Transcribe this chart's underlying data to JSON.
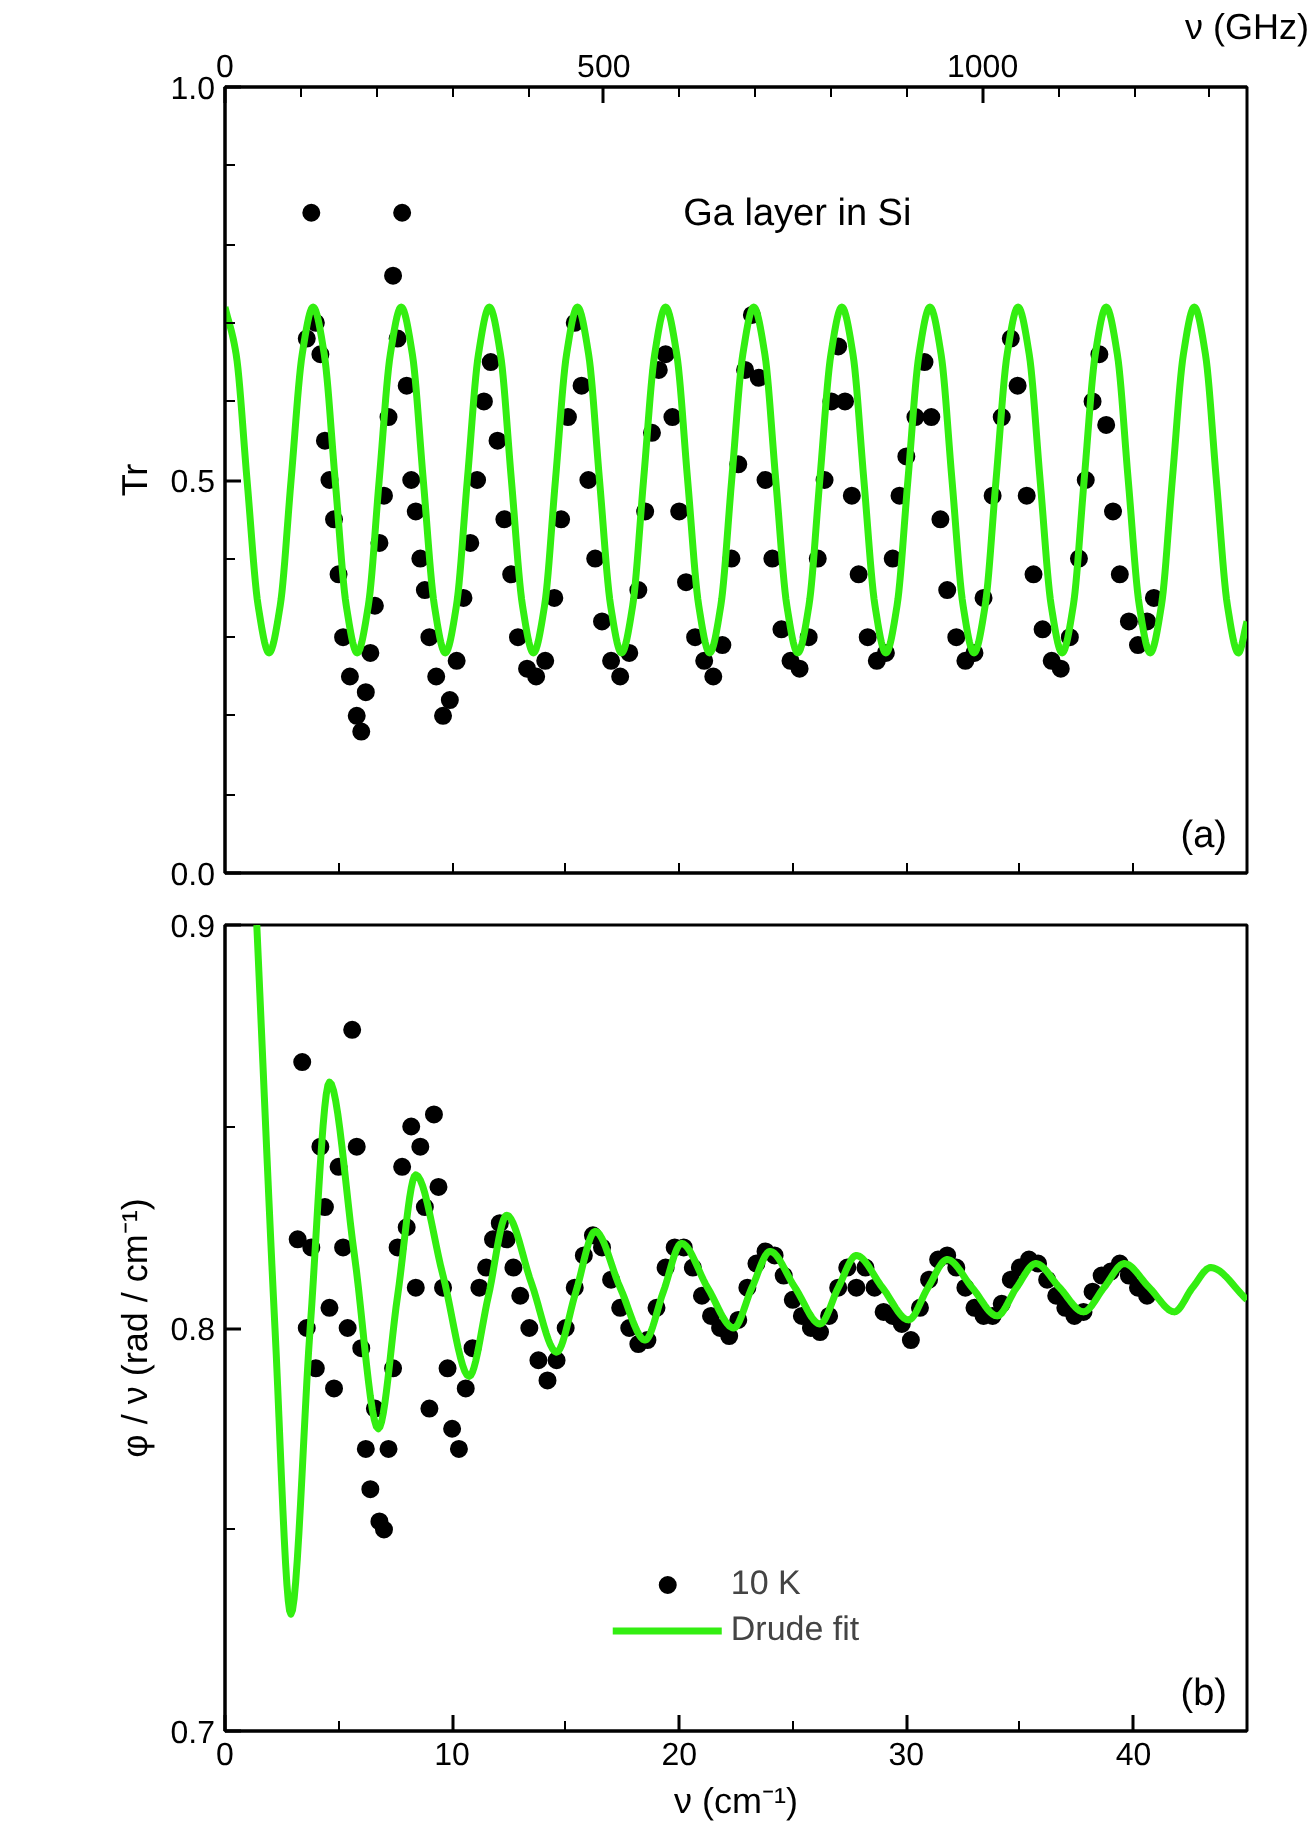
{
  "chart_data": [
    {
      "type": "scatter",
      "ylabel": "Tr",
      "annotations": [
        "Ga layer in Si",
        "(a)"
      ],
      "xlim": [
        0,
        45
      ],
      "ylim": [
        0,
        1
      ],
      "x2label": "ν (GHz)",
      "x2lim": [
        0,
        1349
      ],
      "tick_labels": "y",
      "grid": false,
      "xticks": [
        {
          "value": 0,
          "label": null
        },
        {
          "value": 5,
          "label": null
        },
        {
          "value": 10,
          "label": null
        },
        {
          "value": 15,
          "label": null
        },
        {
          "value": 20,
          "label": null
        },
        {
          "value": 25,
          "label": null
        },
        {
          "value": 30,
          "label": null
        },
        {
          "value": 35,
          "label": null
        },
        {
          "value": 40,
          "label": null
        },
        {
          "value": 45,
          "label": null
        }
      ],
      "x2ticks": [
        0,
        {
          "value": 100,
          "label": null
        },
        {
          "value": 200,
          "label": null
        },
        {
          "value": 300,
          "label": null
        },
        {
          "value": 400,
          "label": null
        },
        500,
        {
          "value": 600,
          "label": null
        },
        {
          "value": 700,
          "label": null
        },
        {
          "value": 800,
          "label": null
        },
        {
          "value": 900,
          "label": null
        },
        1000,
        {
          "value": 1100,
          "label": null
        },
        {
          "value": 1200,
          "label": null
        },
        {
          "value": 1300,
          "label": null
        }
      ],
      "yticks": [
        {
          "value": 0,
          "label": "0.0"
        },
        {
          "value": 0.1,
          "label": null
        },
        {
          "value": 0.2,
          "label": null
        },
        {
          "value": 0.3,
          "label": null
        },
        {
          "value": 0.4,
          "label": null
        },
        0.5,
        {
          "value": 0.6,
          "label": null
        },
        {
          "value": 0.7,
          "label": null
        },
        {
          "value": 0.8,
          "label": null
        },
        {
          "value": 0.9,
          "label": null
        },
        {
          "value": 1,
          "label": "1.0"
        }
      ],
      "series": [
        {
          "marker": "circle",
          "color": "#000000",
          "x": [
            3.6,
            3.8,
            4.0,
            4.2,
            4.4,
            4.6,
            4.8,
            5.0,
            5.2,
            5.5,
            5.8,
            6.0,
            6.2,
            6.4,
            6.6,
            6.8,
            7.0,
            7.2,
            7.4,
            7.6,
            7.8,
            8.0,
            8.2,
            8.4,
            8.6,
            8.8,
            9.0,
            9.3,
            9.6,
            9.9,
            10.2,
            10.5,
            10.8,
            11.1,
            11.4,
            11.7,
            12.0,
            12.3,
            12.6,
            12.9,
            13.3,
            13.7,
            14.1,
            14.5,
            14.8,
            15.1,
            15.4,
            15.7,
            16.0,
            16.3,
            16.6,
            17.0,
            17.4,
            17.8,
            18.2,
            18.5,
            18.8,
            19.1,
            19.4,
            19.7,
            20.0,
            20.3,
            20.7,
            21.1,
            21.5,
            21.9,
            22.3,
            22.6,
            22.9,
            23.2,
            23.5,
            23.8,
            24.1,
            24.5,
            24.9,
            25.3,
            25.7,
            26.1,
            26.4,
            26.7,
            27.0,
            27.3,
            27.6,
            27.9,
            28.3,
            28.7,
            29.1,
            29.4,
            29.7,
            30.0,
            30.4,
            30.8,
            31.1,
            31.5,
            31.8,
            32.2,
            32.6,
            33.0,
            33.4,
            33.8,
            34.2,
            34.6,
            34.9,
            35.3,
            35.6,
            36.0,
            36.4,
            36.8,
            37.2,
            37.6,
            37.9,
            38.2,
            38.5,
            38.8,
            39.1,
            39.4,
            39.8,
            40.2,
            40.6,
            40.9
          ],
          "values": [
            0.68,
            0.84,
            0.7,
            0.66,
            0.55,
            0.5,
            0.45,
            0.38,
            0.3,
            0.25,
            0.2,
            0.18,
            0.23,
            0.28,
            0.34,
            0.42,
            0.48,
            0.58,
            0.76,
            0.68,
            0.84,
            0.62,
            0.5,
            0.46,
            0.4,
            0.36,
            0.3,
            0.25,
            0.2,
            0.22,
            0.27,
            0.35,
            0.42,
            0.5,
            0.6,
            0.65,
            0.55,
            0.45,
            0.38,
            0.3,
            0.26,
            0.25,
            0.27,
            0.35,
            0.45,
            0.58,
            0.7,
            0.62,
            0.5,
            0.4,
            0.32,
            0.27,
            0.25,
            0.28,
            0.36,
            0.46,
            0.56,
            0.64,
            0.66,
            0.58,
            0.46,
            0.37,
            0.3,
            0.27,
            0.25,
            0.29,
            0.4,
            0.52,
            0.64,
            0.71,
            0.63,
            0.5,
            0.4,
            0.31,
            0.27,
            0.26,
            0.3,
            0.4,
            0.5,
            0.6,
            0.67,
            0.6,
            0.48,
            0.38,
            0.3,
            0.27,
            0.28,
            0.4,
            0.48,
            0.53,
            0.58,
            0.65,
            0.58,
            0.45,
            0.36,
            0.3,
            0.27,
            0.28,
            0.35,
            0.48,
            0.58,
            0.68,
            0.62,
            0.48,
            0.38,
            0.31,
            0.27,
            0.26,
            0.3,
            0.4,
            0.5,
            0.6,
            0.66,
            0.57,
            0.46,
            0.38,
            0.32,
            0.29,
            0.32,
            0.35
          ]
        },
        {
          "type": "line",
          "color": "#33ee11",
          "line_style": "solid",
          "x": [
            0,
            0.49,
            0.97,
            1.46,
            1.94,
            2.43,
            2.91,
            3.4,
            3.88,
            4.37,
            4.85,
            5.34,
            5.82,
            6.31,
            6.79,
            7.28,
            7.76,
            8.25,
            8.73,
            9.22,
            9.7,
            10.19,
            10.67,
            11.16,
            11.64,
            12.13,
            12.61,
            13.1,
            13.58,
            14.07,
            14.55,
            15.04,
            15.52,
            16.01,
            16.49,
            16.98,
            17.46,
            17.95,
            18.43,
            18.92,
            19.4,
            19.89,
            20.37,
            20.86,
            21.34,
            21.83,
            22.31,
            22.8,
            23.28,
            23.77,
            24.25,
            24.74,
            25.22,
            25.71,
            26.19,
            26.68,
            27.16,
            27.65,
            28.13,
            28.62,
            29.1,
            29.59,
            30.07,
            30.56,
            31.04,
            31.53,
            32.01,
            32.5,
            32.98,
            33.47,
            33.95,
            34.44,
            34.92,
            35.41,
            35.89,
            36.38,
            36.86,
            37.35,
            37.83,
            38.32,
            38.8,
            39.29,
            39.77,
            40.26,
            40.74,
            41.23,
            41.71,
            42.2,
            42.68,
            43.17,
            43.65,
            44.14,
            44.62,
            45
          ],
          "values": [
            0.72,
            0.66,
            0.5,
            0.34,
            0.28,
            0.34,
            0.5,
            0.66,
            0.72,
            0.66,
            0.5,
            0.34,
            0.28,
            0.34,
            0.5,
            0.66,
            0.72,
            0.66,
            0.5,
            0.34,
            0.28,
            0.34,
            0.5,
            0.66,
            0.72,
            0.66,
            0.5,
            0.34,
            0.28,
            0.34,
            0.5,
            0.66,
            0.72,
            0.66,
            0.5,
            0.34,
            0.28,
            0.34,
            0.5,
            0.66,
            0.72,
            0.66,
            0.5,
            0.34,
            0.28,
            0.34,
            0.5,
            0.66,
            0.72,
            0.66,
            0.5,
            0.34,
            0.28,
            0.34,
            0.5,
            0.66,
            0.72,
            0.66,
            0.5,
            0.34,
            0.28,
            0.34,
            0.5,
            0.66,
            0.72,
            0.66,
            0.5,
            0.34,
            0.28,
            0.34,
            0.5,
            0.66,
            0.72,
            0.66,
            0.5,
            0.34,
            0.28,
            0.34,
            0.5,
            0.66,
            0.72,
            0.66,
            0.5,
            0.34,
            0.28,
            0.34,
            0.5,
            0.66,
            0.72,
            0.66,
            0.5,
            0.34,
            0.28,
            0.32
          ]
        }
      ]
    },
    {
      "type": "scatter",
      "xlabel": "ν (cm⁻¹)",
      "ylabel": "φ / ν (rad / cm⁻¹)",
      "annotations": [
        "(b)"
      ],
      "xlim": [
        0,
        45
      ],
      "ylim": [
        0.7,
        0.9
      ],
      "grid": false,
      "legend": "bottom",
      "xticks": [
        0,
        {
          "value": 5,
          "label": null
        },
        10,
        {
          "value": 15,
          "label": null
        },
        20,
        {
          "value": 25,
          "label": null
        },
        30,
        {
          "value": 35,
          "label": null
        },
        40,
        {
          "value": 45,
          "label": null
        }
      ],
      "yticks": [
        0.7,
        {
          "value": 0.75,
          "label": null
        },
        0.8,
        {
          "value": 0.85,
          "label": null
        },
        0.9
      ],
      "series": [
        {
          "name": "10 K",
          "marker": "circle",
          "color": "#000000",
          "x": [
            3.2,
            3.4,
            3.6,
            3.8,
            4.0,
            4.2,
            4.4,
            4.6,
            4.8,
            5.0,
            5.2,
            5.4,
            5.6,
            5.8,
            6.0,
            6.2,
            6.4,
            6.6,
            6.8,
            7.0,
            7.2,
            7.4,
            7.6,
            7.8,
            8.0,
            8.2,
            8.4,
            8.6,
            8.8,
            9.0,
            9.2,
            9.4,
            9.6,
            9.8,
            10.0,
            10.3,
            10.6,
            10.9,
            11.2,
            11.5,
            11.8,
            12.1,
            12.4,
            12.7,
            13.0,
            13.4,
            13.8,
            14.2,
            14.6,
            15.0,
            15.4,
            15.8,
            16.2,
            16.6,
            17.0,
            17.4,
            17.8,
            18.2,
            18.6,
            19.0,
            19.4,
            19.8,
            20.2,
            20.6,
            21.0,
            21.4,
            21.8,
            22.2,
            22.6,
            23.0,
            23.4,
            23.8,
            24.2,
            24.6,
            25.0,
            25.4,
            25.8,
            26.2,
            26.6,
            27.0,
            27.4,
            27.8,
            28.2,
            28.6,
            29.0,
            29.4,
            29.8,
            30.2,
            30.6,
            31.0,
            31.4,
            31.8,
            32.2,
            32.6,
            33.0,
            33.4,
            33.8,
            34.2,
            34.6,
            35.0,
            35.4,
            35.8,
            36.2,
            36.6,
            37.0,
            37.4,
            37.8,
            38.2,
            38.6,
            39.0,
            39.4,
            39.8,
            40.2,
            40.6
          ],
          "values": [
            0.822,
            0.866,
            0.8,
            0.82,
            0.79,
            0.845,
            0.83,
            0.805,
            0.785,
            0.84,
            0.82,
            0.8,
            0.874,
            0.845,
            0.795,
            0.77,
            0.76,
            0.78,
            0.752,
            0.75,
            0.77,
            0.79,
            0.82,
            0.84,
            0.825,
            0.85,
            0.81,
            0.845,
            0.83,
            0.78,
            0.853,
            0.835,
            0.81,
            0.79,
            0.775,
            0.77,
            0.785,
            0.795,
            0.81,
            0.815,
            0.822,
            0.826,
            0.822,
            0.815,
            0.808,
            0.8,
            0.792,
            0.787,
            0.792,
            0.8,
            0.81,
            0.818,
            0.823,
            0.82,
            0.812,
            0.805,
            0.8,
            0.796,
            0.797,
            0.805,
            0.815,
            0.82,
            0.82,
            0.815,
            0.808,
            0.803,
            0.8,
            0.798,
            0.802,
            0.81,
            0.816,
            0.819,
            0.818,
            0.813,
            0.807,
            0.803,
            0.8,
            0.799,
            0.803,
            0.81,
            0.815,
            0.81,
            0.815,
            0.81,
            0.804,
            0.803,
            0.801,
            0.797,
            0.805,
            0.812,
            0.817,
            0.818,
            0.815,
            0.81,
            0.805,
            0.803,
            0.803,
            0.806,
            0.812,
            0.815,
            0.817,
            0.816,
            0.812,
            0.808,
            0.805,
            0.803,
            0.804,
            0.809,
            0.813,
            0.814,
            0.816,
            0.813,
            0.81,
            0.808
          ]
        },
        {
          "type": "line",
          "name": "Drude fit",
          "color": "#33ee11",
          "line_style": "solid",
          "x": [
            1.4,
            2.2,
            2.9,
            3.75,
            4.6,
            5.7,
            6.75,
            7.6,
            8.4,
            9.6,
            10.75,
            11.6,
            12.4,
            13.5,
            14.6,
            15.45,
            16.3,
            17.4,
            18.5,
            19.3,
            20.1,
            21.25,
            22.4,
            23.2,
            24.0,
            25.1,
            26.2,
            27.0,
            27.8,
            28.95,
            30.1,
            30.95,
            31.8,
            32.9,
            34.0,
            34.85,
            35.7,
            36.75,
            37.8,
            38.7,
            39.6,
            40.7,
            41.8,
            42.6,
            43.4,
            45
          ],
          "values": [
            0.9,
            0.8,
            0.729,
            0.8,
            0.861,
            0.818,
            0.775,
            0.808,
            0.838,
            0.813,
            0.788,
            0.808,
            0.828,
            0.811,
            0.794,
            0.809,
            0.824,
            0.81,
            0.797,
            0.809,
            0.821,
            0.81,
            0.8,
            0.81,
            0.819,
            0.81,
            0.801,
            0.81,
            0.818,
            0.81,
            0.802,
            0.81,
            0.817,
            0.81,
            0.803,
            0.81,
            0.816,
            0.81,
            0.804,
            0.81,
            0.816,
            0.81,
            0.804,
            0.81,
            0.815,
            0.807
          ]
        }
      ]
    }
  ]
}
